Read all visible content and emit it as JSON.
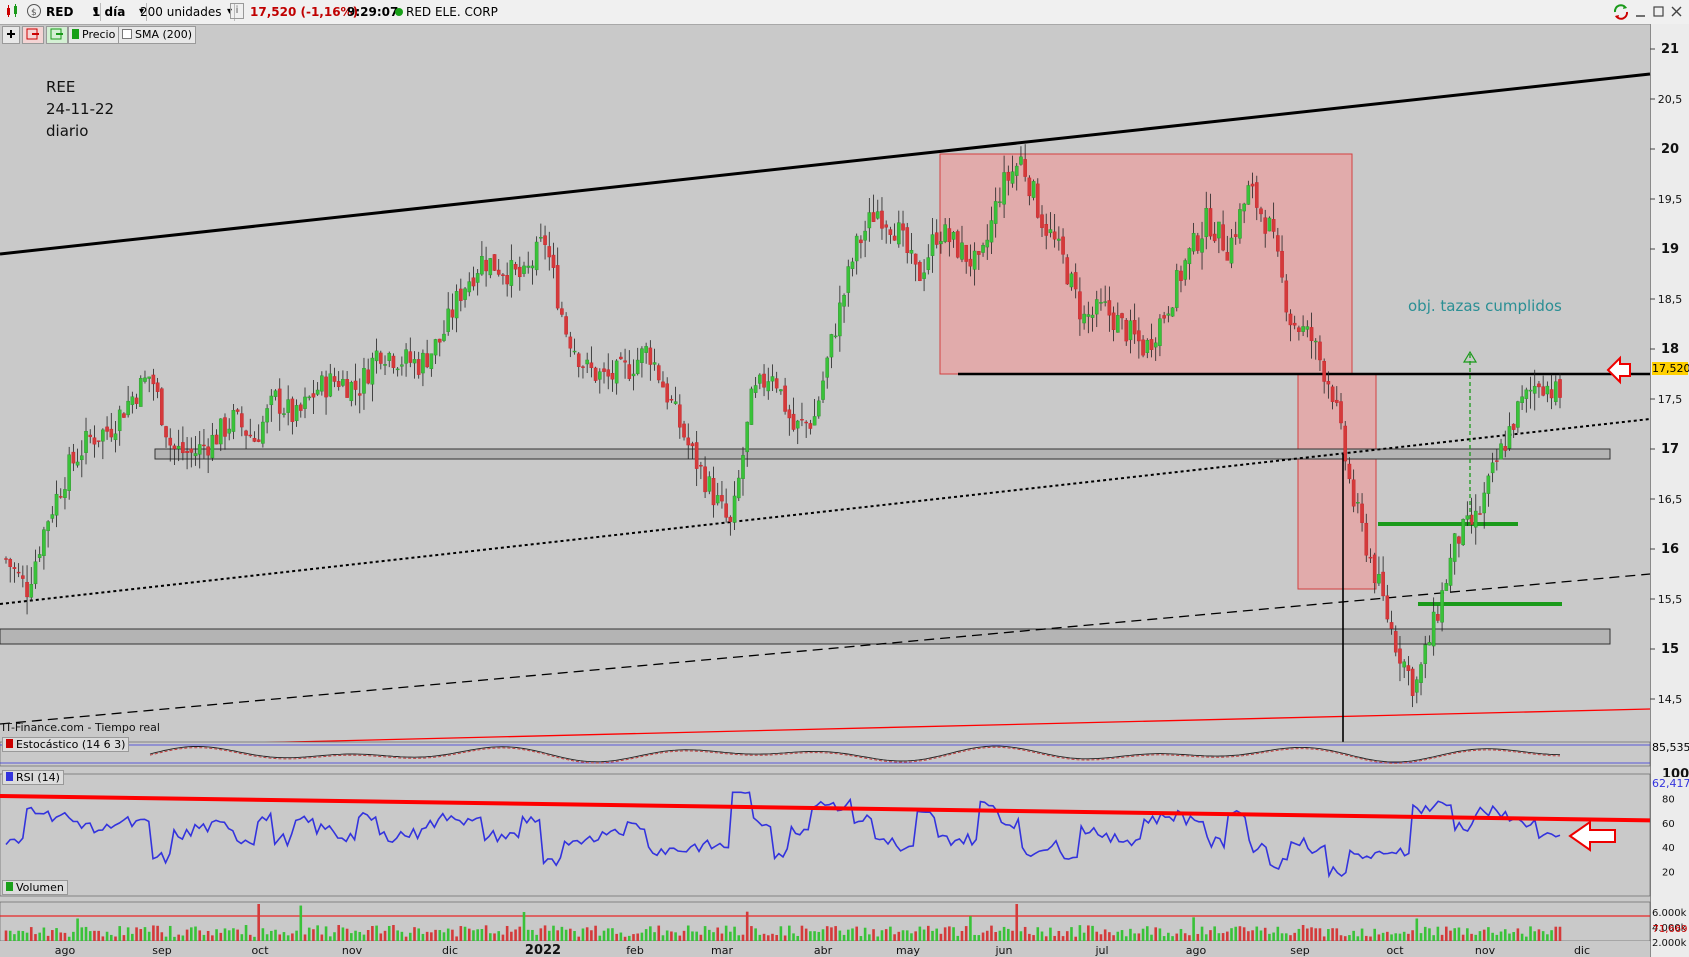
{
  "toolbar": {
    "symbol": "RED",
    "interval": "1 día",
    "units": "200 unidades",
    "info_icon": "i",
    "last_change": "17,520 (-1,16%)",
    "time": "9:29:07",
    "instrument": "RED ELE. CORP",
    "colors": {
      "down": "#c00000",
      "live_dot": "#18a018"
    }
  },
  "indicator_bar": {
    "price_label": "Precio",
    "sma_label": "SMA (200)"
  },
  "annotation": {
    "ticker": "REE",
    "date": "24-11-22",
    "timeframe": "diario",
    "target_text": "obj. tazas cumplidos",
    "source": "IT-Finance.com - Tiempo real"
  },
  "stochastic": {
    "label": "Estocástico (14 6 3)",
    "value": "85,535"
  },
  "rsi": {
    "label": "RSI (14)",
    "value": "62,417",
    "ticks": [
      "100",
      "80",
      "60",
      "40",
      "20"
    ]
  },
  "volume": {
    "label": "Volumen",
    "value": "71,669",
    "ticks": [
      "6.000k",
      "4.000k",
      "2.000k"
    ]
  },
  "chart_data": {
    "type": "candlestick",
    "price_axis": [
      "21",
      "20,5",
      "20",
      "19,5",
      "19",
      "18,5",
      "18",
      "17,5",
      "17",
      "16,5",
      "16",
      "15,5",
      "15",
      "14,5"
    ],
    "last_price": "17,520",
    "x_labels": [
      "ago",
      "sep",
      "oct",
      "nov",
      "dic",
      "2022",
      "feb",
      "mar",
      "abr",
      "may",
      "jun",
      "jul",
      "ago",
      "sep",
      "oct",
      "nov",
      "dic"
    ],
    "ylim": [
      14.05,
      21.05
    ],
    "close_path": [
      [
        "ago 2021",
        15.9
      ],
      [
        "ago 2021",
        15.6
      ],
      [
        "ago 2021",
        16.3
      ],
      [
        "ago 2021",
        16.8
      ],
      [
        "ago 2021",
        17.1
      ],
      [
        "ago 2021",
        17.2
      ],
      [
        "ago 2021",
        17.5
      ],
      [
        "ago 2021",
        17.75
      ],
      [
        "sep 2021",
        17.0
      ],
      [
        "sep 2021",
        16.95
      ],
      [
        "sep 2021",
        17.1
      ],
      [
        "sep 2021",
        17.3
      ],
      [
        "sep 2021",
        17.1
      ],
      [
        "oct 2021",
        17.5
      ],
      [
        "oct 2021",
        17.3
      ],
      [
        "oct 2021",
        17.6
      ],
      [
        "oct 2021",
        17.7
      ],
      [
        "oct 2021",
        17.6
      ],
      [
        "nov 2021",
        18.0
      ],
      [
        "nov 2021",
        17.9
      ],
      [
        "nov 2021",
        17.85
      ],
      [
        "nov 2021",
        18.1
      ],
      [
        "dic 2021",
        18.6
      ],
      [
        "dic 2021",
        18.9
      ],
      [
        "dic 2021",
        18.8
      ],
      [
        "dic 2021",
        18.7
      ],
      [
        "dic 2021",
        19.1
      ],
      [
        "ene 2022",
        18.2
      ],
      [
        "ene 2022",
        17.8
      ],
      [
        "ene 2022",
        17.7
      ],
      [
        "ene 2022",
        17.8
      ],
      [
        "feb 2022",
        18.0
      ],
      [
        "feb 2022",
        17.5
      ],
      [
        "feb 2022",
        17.0
      ],
      [
        "feb 2022",
        16.6
      ],
      [
        "mar 2022",
        16.2
      ],
      [
        "mar 2022",
        17.5
      ],
      [
        "mar 2022",
        17.8
      ],
      [
        "mar 2022",
        17.2
      ],
      [
        "mar 2022",
        17.3
      ],
      [
        "abr 2022",
        18.2
      ],
      [
        "abr 2022",
        19.0
      ],
      [
        "abr 2022",
        19.4
      ],
      [
        "abr 2022",
        19.2
      ],
      [
        "may 2022",
        18.7
      ],
      [
        "may 2022",
        19.2
      ],
      [
        "may 2022",
        19.0
      ],
      [
        "may 2022",
        18.8
      ],
      [
        "jun 2022",
        19.6
      ],
      [
        "jun 2022",
        19.9
      ],
      [
        "jun 2022",
        19.3
      ],
      [
        "jun 2022",
        18.9
      ],
      [
        "jun 2022",
        18.3
      ],
      [
        "jul 2022",
        18.4
      ],
      [
        "jul 2022",
        18.2
      ],
      [
        "jul 2022",
        18.0
      ],
      [
        "jul 2022",
        18.4
      ],
      [
        "ago 2022",
        18.9
      ],
      [
        "ago 2022",
        19.3
      ],
      [
        "ago 2022",
        19.0
      ],
      [
        "ago 2022",
        19.6
      ],
      [
        "sep 2022",
        19.2
      ],
      [
        "sep 2022",
        18.3
      ],
      [
        "sep 2022",
        18.1
      ],
      [
        "sep 2022",
        17.6
      ],
      [
        "oct 2022",
        16.5
      ],
      [
        "oct 2022",
        15.8
      ],
      [
        "oct 2022",
        15.1
      ],
      [
        "oct 2022",
        14.6
      ],
      [
        "oct 2022",
        15.3
      ],
      [
        "nov 2022",
        16.1
      ],
      [
        "nov 2022",
        16.3
      ],
      [
        "nov 2022",
        16.9
      ],
      [
        "nov 2022",
        17.4
      ],
      [
        "nov 2022",
        17.7
      ],
      [
        "nov 2022",
        17.52
      ]
    ],
    "trendlines": {
      "upper_resistance": [
        [
          0,
          18.95
        ],
        [
          1,
          20.75
        ]
      ],
      "support_dotted": [
        [
          0,
          15.45
        ],
        [
          1,
          17.3
        ]
      ],
      "long_dashed": [
        [
          0,
          14.25
        ],
        [
          1,
          15.75
        ]
      ],
      "red_line": [
        [
          0,
          14.0
        ],
        [
          1,
          14.4
        ]
      ]
    },
    "zones": [
      {
        "name": "range_box_1",
        "ymin": 17.75,
        "ymax": 19.95
      },
      {
        "name": "drop_box",
        "ymin": 15.6,
        "ymax": 17.75
      },
      {
        "name": "support_band_17",
        "ymin": 16.9,
        "ymax": 17.0
      },
      {
        "name": "support_band_15",
        "ymin": 15.05,
        "ymax": 15.2
      }
    ],
    "horizontal_lines": [
      {
        "name": "neckline",
        "y": 17.75
      },
      {
        "name": "green_cup_1",
        "y": 16.25
      },
      {
        "name": "green_cup_2",
        "y": 15.45
      }
    ],
    "rsi_trendline": [
      [
        0,
        82
      ],
      [
        1,
        62
      ]
    ],
    "colors": {
      "up": "#2e8b2e",
      "down": "#c8202a",
      "box": "#e8a0a0",
      "trend_red": "#ff0000",
      "rsi": "#3333dd"
    }
  }
}
